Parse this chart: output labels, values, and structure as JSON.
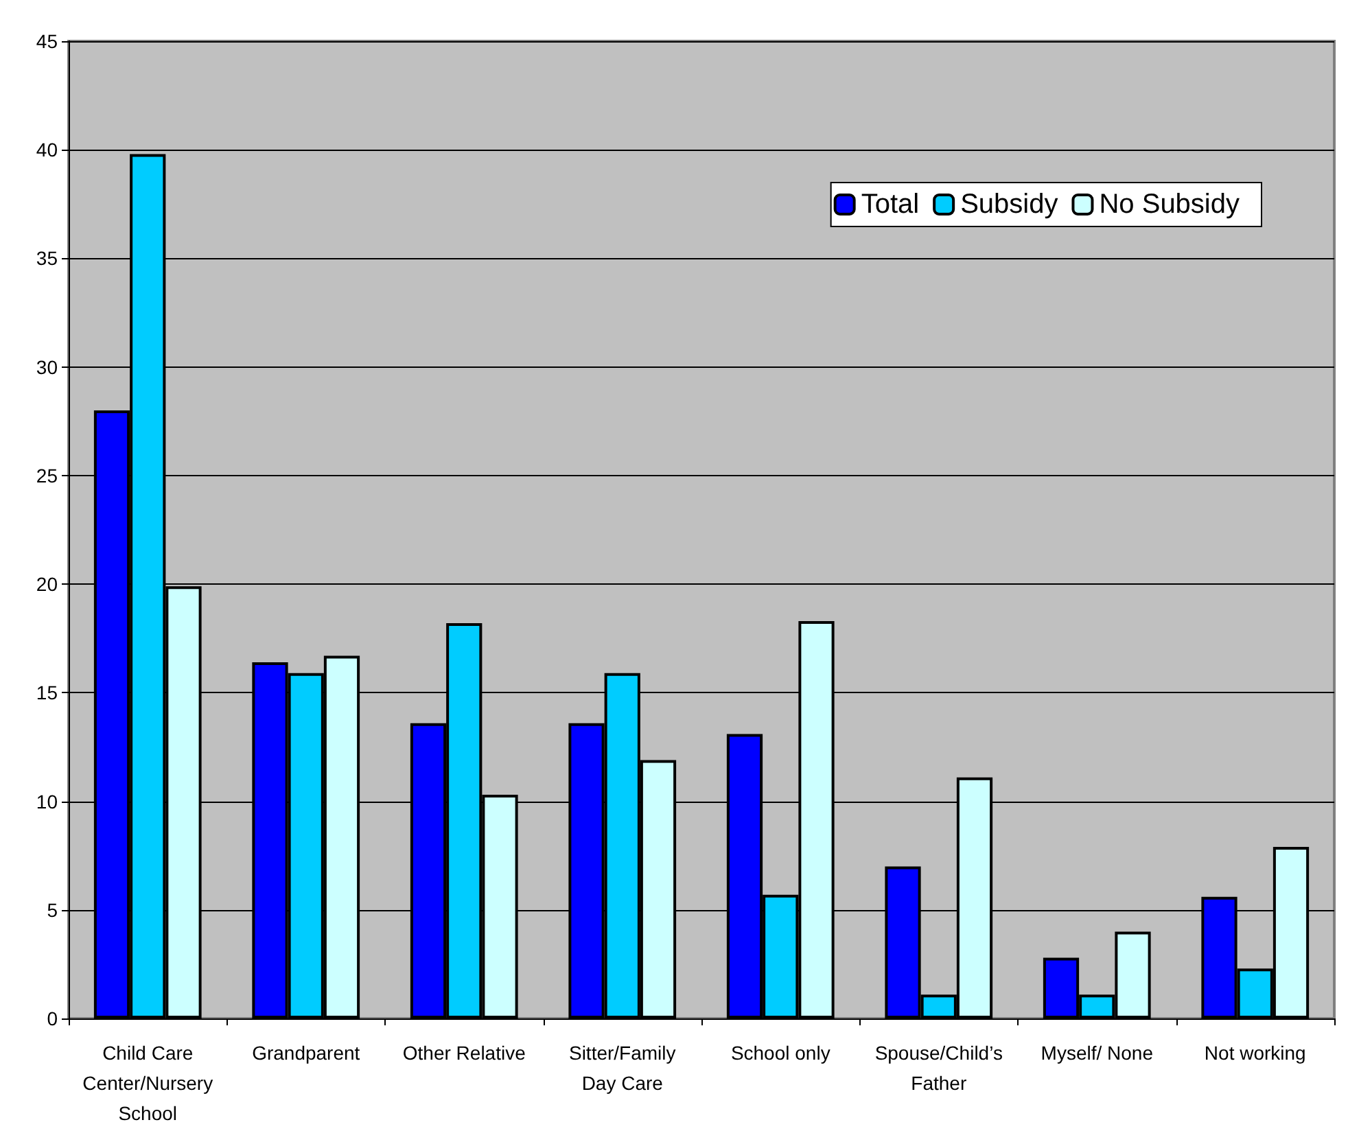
{
  "chart_data": {
    "type": "bar",
    "categories": [
      "Child Care\nCenter/Nursery\nSchool",
      "Grandparent",
      "Other Relative",
      "Sitter/Family\nDay Care",
      "School only",
      "Spouse/Child’s\nFather",
      "Myself/ None",
      "Not working"
    ],
    "series": [
      {
        "name": "Total",
        "color": "#0000ff",
        "values": [
          28.0,
          16.4,
          13.6,
          13.6,
          13.1,
          7.0,
          2.8,
          5.6
        ]
      },
      {
        "name": "Subsidy",
        "color": "#00ccff",
        "values": [
          39.8,
          15.9,
          18.2,
          15.9,
          5.7,
          1.1,
          1.1,
          2.3
        ]
      },
      {
        "name": "No Subsidy",
        "color": "#ccffff",
        "values": [
          19.9,
          16.7,
          10.3,
          11.9,
          18.3,
          11.1,
          4.0,
          7.9
        ]
      }
    ],
    "ylim": [
      0,
      45
    ],
    "yticks": [
      0,
      5,
      10,
      15,
      20,
      25,
      30,
      35,
      40,
      45
    ],
    "grid": "y",
    "legend": "top right"
  }
}
